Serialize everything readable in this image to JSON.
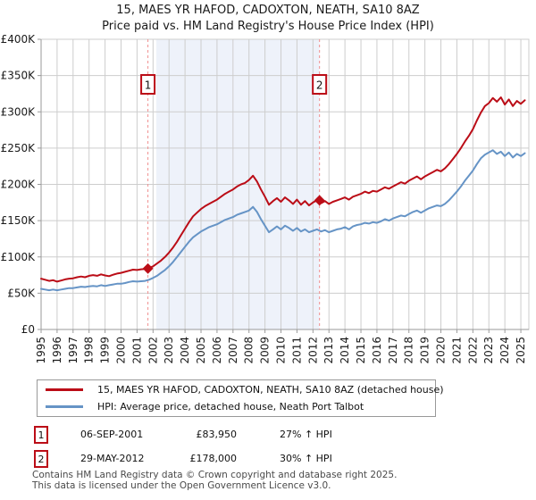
{
  "title": {
    "line1": "15, MAES YR HAFOD, CADOXTON, NEATH, SA10 8AZ",
    "line2": "Price paid vs. HM Land Registry's House Price Index (HPI)"
  },
  "colors": {
    "property": "#bb0d17",
    "hpi": "#6694c6",
    "sale_dash": "#f08f8f",
    "band": "#eef2fa",
    "grid": "#cdcdcd",
    "axis": "#9a9a9a",
    "marker_box_border": "#bb0d17",
    "text": "#1a1a1a"
  },
  "chart_data": {
    "type": "line",
    "x_axis": {
      "min": 1995,
      "max": 2025.5
    },
    "ylim": [
      0,
      400000
    ],
    "grid": true,
    "x_ticks": [
      1995,
      1996,
      1997,
      1998,
      1999,
      2000,
      2001,
      2002,
      2003,
      2004,
      2005,
      2006,
      2007,
      2008,
      2009,
      2010,
      2011,
      2012,
      2013,
      2014,
      2015,
      2016,
      2017,
      2018,
      2019,
      2020,
      2021,
      2022,
      2023,
      2024,
      2025
    ],
    "y_ticks": [
      {
        "value": 0,
        "label": "£0"
      },
      {
        "value": 50000,
        "label": "£50K"
      },
      {
        "value": 100000,
        "label": "£100K"
      },
      {
        "value": 150000,
        "label": "£150K"
      },
      {
        "value": 200000,
        "label": "£200K"
      },
      {
        "value": 250000,
        "label": "£250K"
      },
      {
        "value": 300000,
        "label": "£300K"
      },
      {
        "value": 350000,
        "label": "£350K"
      },
      {
        "value": 400000,
        "label": "£400K"
      }
    ],
    "shaded_region": {
      "from": 2002.2,
      "to": 2012.41
    },
    "series": [
      {
        "name": "15, MAES YR HAFOD, CADOXTON, NEATH, SA10 8AZ (detached house)",
        "color": "#bb0d17",
        "width": 2,
        "x0": 1995.0,
        "x_step": 0.25,
        "values": [
          70000,
          68500,
          67000,
          68000,
          66000,
          67500,
          69000,
          70000,
          70500,
          72000,
          73000,
          72000,
          74000,
          75000,
          74000,
          76000,
          74500,
          73500,
          75500,
          77000,
          78000,
          79500,
          81000,
          82500,
          82000,
          83000,
          83500,
          84500,
          87000,
          91000,
          95000,
          100000,
          106000,
          113000,
          121000,
          130000,
          139000,
          148000,
          156000,
          161000,
          166000,
          170000,
          173000,
          176000,
          179000,
          183000,
          187000,
          190000,
          193000,
          197000,
          200000,
          202000,
          206000,
          212000,
          204000,
          193000,
          183000,
          172000,
          177000,
          181000,
          176000,
          182000,
          178000,
          173000,
          179000,
          172000,
          177000,
          171000,
          175000,
          178000,
          174000,
          177000,
          173000,
          176000,
          178000,
          180000,
          182000,
          179000,
          183000,
          185000,
          187000,
          190000,
          188000,
          191000,
          190000,
          193000,
          196000,
          194000,
          197000,
          200000,
          203000,
          201000,
          205000,
          208000,
          211000,
          207000,
          211000,
          214000,
          217000,
          220000,
          218000,
          222000,
          228000,
          235000,
          242000,
          250000,
          259000,
          267000,
          276000,
          288000,
          299000,
          308000,
          312000,
          319000,
          314000,
          320000,
          310000,
          317000,
          308000,
          315000,
          311000,
          316000
        ]
      },
      {
        "name": "HPI: Average price, detached house, Neath Port Talbot",
        "color": "#6694c6",
        "width": 2,
        "x0": 1995.0,
        "x_step": 0.25,
        "values": [
          56000,
          55000,
          54000,
          55000,
          54000,
          55000,
          56000,
          57000,
          57000,
          58000,
          59000,
          58500,
          59500,
          60000,
          59500,
          61000,
          60000,
          61000,
          62000,
          63000,
          63000,
          64000,
          65500,
          66500,
          66000,
          66500,
          67000,
          68500,
          71000,
          74000,
          78000,
          82000,
          87000,
          93000,
          100000,
          107000,
          114000,
          121000,
          127000,
          131000,
          135000,
          138000,
          141000,
          143000,
          145000,
          148000,
          151000,
          153000,
          155000,
          158000,
          160000,
          162000,
          164000,
          169000,
          162000,
          152000,
          143000,
          134000,
          138000,
          142000,
          138000,
          143000,
          140000,
          136000,
          140000,
          135000,
          138000,
          134000,
          136000,
          138000,
          135000,
          137000,
          134000,
          136000,
          138000,
          139000,
          141000,
          138000,
          142000,
          144000,
          145000,
          147000,
          146000,
          148000,
          147000,
          149000,
          152000,
          150000,
          153000,
          155000,
          157000,
          156000,
          159000,
          162000,
          164000,
          161000,
          164000,
          167000,
          169000,
          171000,
          170000,
          173000,
          178000,
          184000,
          190000,
          197000,
          205000,
          212000,
          219000,
          228000,
          236000,
          241000,
          244000,
          247000,
          242000,
          245000,
          239000,
          244000,
          237000,
          242000,
          239000,
          243000
        ]
      }
    ],
    "sales": [
      {
        "label": "1",
        "x": 2001.68,
        "value": 83950
      },
      {
        "label": "2",
        "x": 2012.41,
        "value": 178000
      }
    ]
  },
  "legend": [
    {
      "label": "15, MAES YR HAFOD, CADOXTON, NEATH, SA10 8AZ (detached house)"
    },
    {
      "label": "HPI: Average price, detached house, Neath Port Talbot"
    }
  ],
  "transactions": [
    {
      "marker": "1",
      "date": "06-SEP-2001",
      "price": "£83,950",
      "hpi": "27% ↑ HPI"
    },
    {
      "marker": "2",
      "date": "29-MAY-2012",
      "price": "£178,000",
      "hpi": "30% ↑ HPI"
    }
  ],
  "footer": {
    "line1": "Contains HM Land Registry data © Crown copyright and database right 2025.",
    "line2": "This data is licensed under the Open Government Licence v3.0."
  }
}
